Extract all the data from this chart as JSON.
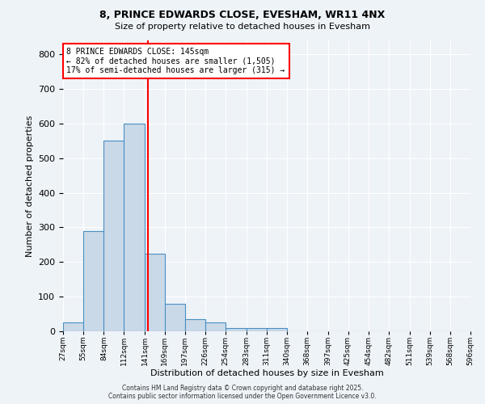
{
  "title_line1": "8, PRINCE EDWARDS CLOSE, EVESHAM, WR11 4NX",
  "title_line2": "Size of property relative to detached houses in Evesham",
  "xlabel": "Distribution of detached houses by size in Evesham",
  "ylabel": "Number of detached properties",
  "bin_edges": [
    27,
    55,
    84,
    112,
    141,
    169,
    197,
    226,
    254,
    283,
    311,
    340,
    368,
    397,
    425,
    454,
    482,
    511,
    539,
    568,
    596
  ],
  "bar_heights": [
    25,
    290,
    550,
    600,
    225,
    80,
    35,
    25,
    10,
    10,
    10,
    0,
    0,
    0,
    0,
    0,
    0,
    0,
    0,
    0
  ],
  "bar_color": "#c9d9e8",
  "bar_edge_color": "#4a90c4",
  "reference_line_x": 145,
  "reference_line_color": "red",
  "annotation_text": "8 PRINCE EDWARDS CLOSE: 145sqm\n← 82% of detached houses are smaller (1,505)\n17% of semi-detached houses are larger (315) →",
  "annotation_box_color": "red",
  "annotation_text_color": "black",
  "annotation_bg_color": "white",
  "ylim": [
    0,
    840
  ],
  "yticks": [
    0,
    100,
    200,
    300,
    400,
    500,
    600,
    700,
    800
  ],
  "footnote1": "Contains HM Land Registry data © Crown copyright and database right 2025.",
  "footnote2": "Contains public sector information licensed under the Open Government Licence v3.0.",
  "background_color": "#eef3f8",
  "grid_color": "white"
}
